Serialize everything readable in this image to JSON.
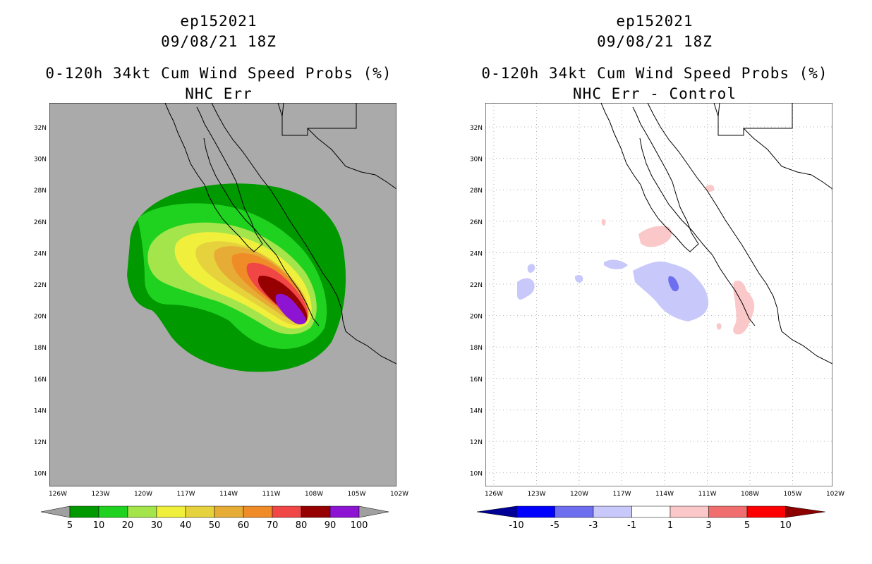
{
  "left_panel": {
    "storm_id": "ep152021",
    "datetime": "09/08/21 18Z",
    "product": "0-120h 34kt Cum Wind Speed Probs (%)",
    "subtitle": "NHC Err",
    "lat_labels": [
      "32N",
      "30N",
      "28N",
      "26N",
      "24N",
      "22N",
      "20N",
      "18N",
      "16N",
      "14N",
      "12N",
      "10N"
    ],
    "lon_labels": [
      "126W",
      "123W",
      "120W",
      "117W",
      "114W",
      "111W",
      "108W",
      "105W",
      "102W"
    ],
    "colorbar": {
      "labels": [
        "5",
        "10",
        "20",
        "30",
        "40",
        "50",
        "60",
        "70",
        "80",
        "90",
        "100"
      ],
      "colors": [
        "#a0a0a0",
        "#009a00",
        "#1fd21f",
        "#a3e54b",
        "#f0f03c",
        "#e6d23c",
        "#e6ac35",
        "#f08c28",
        "#f04646",
        "#960000",
        "#8c14d2",
        "#a0a0a0"
      ]
    },
    "background_color": "#aaaaaa"
  },
  "right_panel": {
    "storm_id": "ep152021",
    "datetime": "09/08/21 18Z",
    "product": "0-120h 34kt Cum Wind Speed Probs (%)",
    "subtitle": "NHC Err - Control",
    "lat_labels": [
      "32N",
      "30N",
      "28N",
      "26N",
      "24N",
      "22N",
      "20N",
      "18N",
      "16N",
      "14N",
      "12N",
      "10N"
    ],
    "lon_labels": [
      "126W",
      "123W",
      "120W",
      "117W",
      "114W",
      "111W",
      "108W",
      "105W",
      "102W"
    ],
    "colorbar": {
      "labels": [
        "-10",
        "-5",
        "-3",
        "-1",
        "1",
        "3",
        "5",
        "10"
      ],
      "colors": [
        "#000096",
        "#0000ff",
        "#6e6ef0",
        "#c8c8fa",
        "#ffffff",
        "#fac8c8",
        "#f06e6e",
        "#ff0000",
        "#8c0000"
      ]
    },
    "background_color": "#ffffff"
  }
}
